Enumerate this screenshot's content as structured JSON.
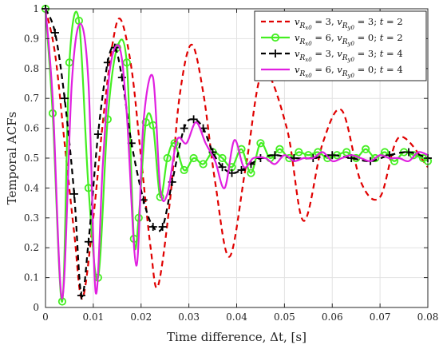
{
  "chart_data": {
    "type": "line",
    "title": "",
    "xlabel": "Time difference, Δt, [s]",
    "ylabel": "Temporal ACFs",
    "xlim": [
      0,
      0.08
    ],
    "ylim": [
      0,
      1
    ],
    "xticks": [
      0,
      0.01,
      0.02,
      0.03,
      0.04,
      0.05,
      0.06,
      0.07,
      0.08
    ],
    "xtick_labels": [
      "0",
      "0.01",
      "0.02",
      "0.03",
      "0.04",
      "0.05",
      "0.06",
      "0.07",
      "0.08"
    ],
    "yticks": [
      0,
      0.1,
      0.2,
      0.3,
      0.4,
      0.5,
      0.6,
      0.7,
      0.8,
      0.9,
      1
    ],
    "ytick_labels": [
      "0",
      "0.1",
      "0.2",
      "0.3",
      "0.4",
      "0.5",
      "0.6",
      "0.7",
      "0.8",
      "0.9",
      "1"
    ],
    "grid": true,
    "legend_position": "top-right",
    "series": [
      {
        "name": "vRx0 = 3, vRy0 = 3; t = 2",
        "color": "#e00000",
        "dash": "dashed",
        "marker": "none",
        "x": [
          0,
          0.002,
          0.004,
          0.006,
          0.0077,
          0.01,
          0.012,
          0.014,
          0.0157,
          0.018,
          0.02,
          0.022,
          0.0235,
          0.026,
          0.028,
          0.0305,
          0.033,
          0.0355,
          0.0385,
          0.042,
          0.0455,
          0.0505,
          0.054,
          0.058,
          0.062,
          0.066,
          0.07,
          0.074,
          0.08
        ],
        "y": [
          1.0,
          0.85,
          0.55,
          0.25,
          0.03,
          0.3,
          0.62,
          0.88,
          0.965,
          0.8,
          0.5,
          0.2,
          0.07,
          0.35,
          0.7,
          0.88,
          0.72,
          0.42,
          0.17,
          0.48,
          0.79,
          0.6,
          0.29,
          0.55,
          0.66,
          0.42,
          0.37,
          0.57,
          0.47
        ]
      },
      {
        "name": "vRx0 = 6, vRy0 = 0; t = 2",
        "color": "#44ee22",
        "dash": "solid",
        "marker": "circle",
        "x": [
          0,
          0.0015,
          0.0035,
          0.005,
          0.007,
          0.009,
          0.011,
          0.013,
          0.015,
          0.017,
          0.0185,
          0.0195,
          0.021,
          0.0225,
          0.024,
          0.0255,
          0.027,
          0.029,
          0.031,
          0.033,
          0.035,
          0.037,
          0.039,
          0.041,
          0.043,
          0.045,
          0.047,
          0.049,
          0.051,
          0.053,
          0.055,
          0.057,
          0.059,
          0.061,
          0.063,
          0.065,
          0.067,
          0.069,
          0.071,
          0.073,
          0.075,
          0.077,
          0.079,
          0.08
        ],
        "y": [
          1.0,
          0.65,
          0.02,
          0.82,
          0.96,
          0.4,
          0.1,
          0.63,
          0.87,
          0.82,
          0.23,
          0.3,
          0.62,
          0.61,
          0.37,
          0.5,
          0.55,
          0.46,
          0.5,
          0.48,
          0.52,
          0.5,
          0.47,
          0.53,
          0.45,
          0.55,
          0.5,
          0.53,
          0.5,
          0.52,
          0.51,
          0.52,
          0.5,
          0.51,
          0.52,
          0.5,
          0.53,
          0.5,
          0.52,
          0.49,
          0.52,
          0.51,
          0.5,
          0.49
        ]
      },
      {
        "name": "vRx0 = 3, vRy0 = 3; t = 4",
        "color": "#000000",
        "dash": "dashed",
        "marker": "plus",
        "x": [
          0,
          0.002,
          0.004,
          0.006,
          0.0075,
          0.009,
          0.011,
          0.013,
          0.0145,
          0.016,
          0.018,
          0.0205,
          0.0225,
          0.0245,
          0.0265,
          0.029,
          0.031,
          0.033,
          0.035,
          0.037,
          0.039,
          0.041,
          0.043,
          0.045,
          0.048,
          0.052,
          0.056,
          0.06,
          0.064,
          0.068,
          0.072,
          0.076,
          0.08
        ],
        "y": [
          1.0,
          0.92,
          0.7,
          0.38,
          0.04,
          0.22,
          0.58,
          0.82,
          0.87,
          0.77,
          0.55,
          0.36,
          0.27,
          0.27,
          0.42,
          0.6,
          0.63,
          0.6,
          0.52,
          0.47,
          0.45,
          0.46,
          0.48,
          0.5,
          0.51,
          0.5,
          0.5,
          0.51,
          0.5,
          0.49,
          0.51,
          0.52,
          0.5
        ]
      },
      {
        "name": "vRx0 = 6, vRy0 = 0; t = 4",
        "color": "#e020e0",
        "dash": "solid",
        "marker": "none",
        "x": [
          0,
          0.0015,
          0.0035,
          0.0055,
          0.0073,
          0.009,
          0.0105,
          0.012,
          0.0135,
          0.0155,
          0.017,
          0.019,
          0.0205,
          0.0225,
          0.024,
          0.0255,
          0.0275,
          0.0295,
          0.0315,
          0.0335,
          0.0355,
          0.0375,
          0.0395,
          0.0415,
          0.0435,
          0.046,
          0.048,
          0.05,
          0.052,
          0.054,
          0.056,
          0.058,
          0.06,
          0.062,
          0.064,
          0.066,
          0.068,
          0.07,
          0.072,
          0.074,
          0.076,
          0.078,
          0.08
        ],
        "y": [
          1.0,
          0.7,
          0.03,
          0.75,
          0.95,
          0.75,
          0.05,
          0.48,
          0.8,
          0.87,
          0.65,
          0.14,
          0.62,
          0.77,
          0.4,
          0.38,
          0.56,
          0.55,
          0.62,
          0.55,
          0.49,
          0.4,
          0.56,
          0.47,
          0.5,
          0.5,
          0.48,
          0.51,
          0.49,
          0.5,
          0.5,
          0.52,
          0.49,
          0.5,
          0.51,
          0.5,
          0.49,
          0.51,
          0.5,
          0.5,
          0.49,
          0.52,
          0.51
        ]
      }
    ]
  },
  "legend": {
    "entries": [
      {
        "v1": "v",
        "s1": "R",
        "ss1": "x0",
        "val1": " = 3, ",
        "v2": "v",
        "s2": "R",
        "ss2": "y0",
        "val2": " = 3; ",
        "t": "t",
        "tval": " = 2"
      },
      {
        "v1": "v",
        "s1": "R",
        "ss1": "x0",
        "val1": " = 6, ",
        "v2": "v",
        "s2": "R",
        "ss2": "y0",
        "val2": " = 0; ",
        "t": "t",
        "tval": " = 2"
      },
      {
        "v1": "v",
        "s1": "R",
        "ss1": "x0",
        "val1": " = 3, ",
        "v2": "v",
        "s2": "R",
        "ss2": "y0",
        "val2": " = 3; ",
        "t": "t",
        "tval": " = 4"
      },
      {
        "v1": "v",
        "s1": "R",
        "ss1": "x0",
        "val1": " = 6, ",
        "v2": "v",
        "s2": "R",
        "ss2": "y0",
        "val2": " = 0; ",
        "t": "t",
        "tval": " = 4"
      }
    ]
  }
}
